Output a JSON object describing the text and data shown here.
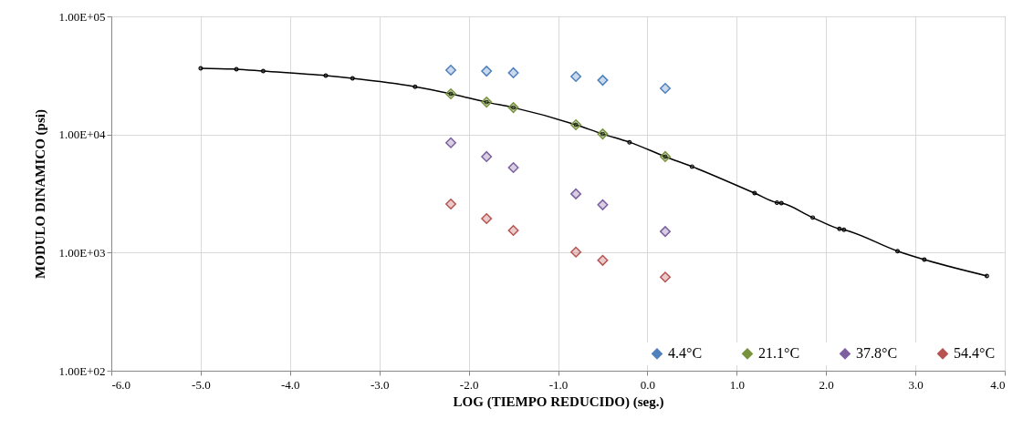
{
  "chart_data": {
    "type": "scatter",
    "xlabel": "LOG (TIEMPO REDUCIDO) (seg.)",
    "ylabel": "MODULO DINAMICO (psi)",
    "xlim": [
      -6,
      4
    ],
    "xticks": [
      {
        "value": -6,
        "label": "-6.0"
      },
      {
        "value": -5,
        "label": "-5.0"
      },
      {
        "value": -4,
        "label": "-4.0"
      },
      {
        "value": -3,
        "label": "-3.0"
      },
      {
        "value": -2,
        "label": "-2.0"
      },
      {
        "value": -1,
        "label": "-1.0"
      },
      {
        "value": 0,
        "label": "0.0"
      },
      {
        "value": 1,
        "label": "1.0"
      },
      {
        "value": 2,
        "label": "2.0"
      },
      {
        "value": 3,
        "label": "3.0"
      },
      {
        "value": 4,
        "label": "4.0"
      }
    ],
    "ylim": [
      100,
      100000
    ],
    "yticks": [
      {
        "value": 100,
        "label": "1.00E+02"
      },
      {
        "value": 1000,
        "label": "1.00E+03"
      },
      {
        "value": 10000,
        "label": "1.00E+04"
      },
      {
        "value": 100000,
        "label": "1.00E+05"
      }
    ],
    "log": true,
    "grid": true,
    "legend": "bottom right",
    "series": [
      {
        "type": "line",
        "color": "#000000",
        "marker": "circle",
        "x": [
          -5.0,
          -4.6,
          -4.3,
          -3.6,
          -3.3,
          -2.6,
          -2.2,
          -1.8,
          -1.5,
          -0.8,
          -0.5,
          -0.2,
          0.2,
          0.5,
          1.2,
          1.45,
          1.5,
          1.85,
          2.15,
          2.2,
          2.8,
          3.1,
          3.8
        ],
        "values": [
          36400,
          35700,
          34400,
          31500,
          29900,
          25400,
          22100,
          18800,
          16900,
          12100,
          10100,
          8600,
          6500,
          5350,
          3190,
          2650,
          2620,
          1980,
          1590,
          1560,
          1030,
          873,
          635
        ]
      },
      {
        "name": "4.4°C",
        "color": "#4f81bd",
        "marker": "diamond",
        "x": [
          -2.2,
          -1.8,
          -1.5,
          -0.8,
          -0.5,
          0.2
        ],
        "values": [
          35100,
          34400,
          33300,
          31000,
          28800,
          24600
        ]
      },
      {
        "name": "21.1°C",
        "color": "#77933c",
        "marker": "diamond",
        "x": [
          -2.2,
          -1.8,
          -1.5,
          -0.8,
          -0.5,
          0.2
        ],
        "values": [
          22100,
          18800,
          16900,
          12100,
          10100,
          6500
        ]
      },
      {
        "name": "37.8°C",
        "color": "#7d60a0",
        "marker": "diamond",
        "x": [
          -2.2,
          -1.8,
          -1.5,
          -0.8,
          -0.5,
          0.2
        ],
        "values": [
          8500,
          6500,
          5250,
          3140,
          2540,
          1510
        ]
      },
      {
        "name": "54.4°C",
        "color": "#b65452",
        "marker": "diamond",
        "x": [
          -2.2,
          -1.8,
          -1.5,
          -0.8,
          -0.5,
          0.2
        ],
        "values": [
          2580,
          1940,
          1540,
          1010,
          860,
          620
        ]
      }
    ]
  }
}
